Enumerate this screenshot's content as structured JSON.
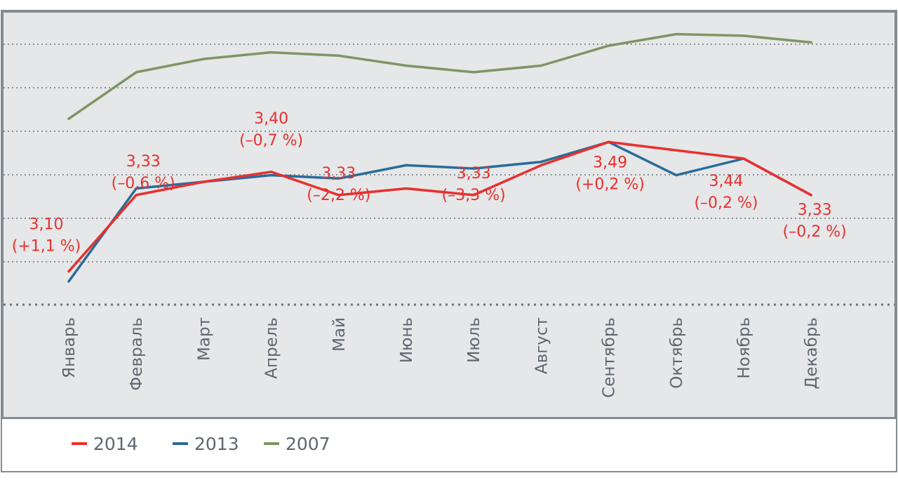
{
  "chart_data": {
    "type": "line",
    "categories": [
      "Январь",
      "Февраль",
      "Март",
      "Апрель",
      "Май",
      "Июнь",
      "Июль",
      "Август",
      "Сентябрь",
      "Октябрь",
      "Ноябрь",
      "Декабрь"
    ],
    "ylim": [
      3.0,
      3.85
    ],
    "grid": true,
    "legend_position": "bottom",
    "series": [
      {
        "name": "2014",
        "color": "#e8302f",
        "values": [
          3.1,
          3.33,
          3.37,
          3.4,
          3.33,
          3.35,
          3.33,
          3.42,
          3.49,
          3.465,
          3.44,
          3.33
        ]
      },
      {
        "name": "2013",
        "color": "#2a6c9a",
        "values": [
          3.07,
          3.35,
          3.37,
          3.39,
          3.38,
          3.42,
          3.41,
          3.43,
          3.49,
          3.39,
          3.44,
          3.33
        ]
      },
      {
        "name": "2007",
        "color": "#7f9563",
        "values": [
          3.56,
          3.7,
          3.74,
          3.76,
          3.75,
          3.72,
          3.7,
          3.72,
          3.78,
          3.815,
          3.81,
          3.79
        ]
      }
    ],
    "annotations": [
      {
        "series": "2014",
        "month": "Январь",
        "value_text": "3,10",
        "change_text": "(+1,1 %)"
      },
      {
        "series": "2014",
        "month": "Февраль",
        "value_text": "3,33",
        "change_text": "(–0,6 %)"
      },
      {
        "series": "2014",
        "month": "Апрель",
        "value_text": "3,40",
        "change_text": "(–0,7 %)"
      },
      {
        "series": "2014",
        "month": "Май",
        "value_text": "3,33",
        "change_text": "(–2,2 %)"
      },
      {
        "series": "2014",
        "month": "Июль",
        "value_text": "3,33",
        "change_text": "(–3,3 %)"
      },
      {
        "series": "2014",
        "month": "Сентябрь",
        "value_text": "3,49",
        "change_text": "(+0,2 %)"
      },
      {
        "series": "2014",
        "month": "Ноябрь",
        "value_text": "3,44",
        "change_text": "(–0,2 %)"
      },
      {
        "series": "2014",
        "month": "Декабрь",
        "value_text": "3,33",
        "change_text": "(–0,2 %)"
      }
    ]
  }
}
